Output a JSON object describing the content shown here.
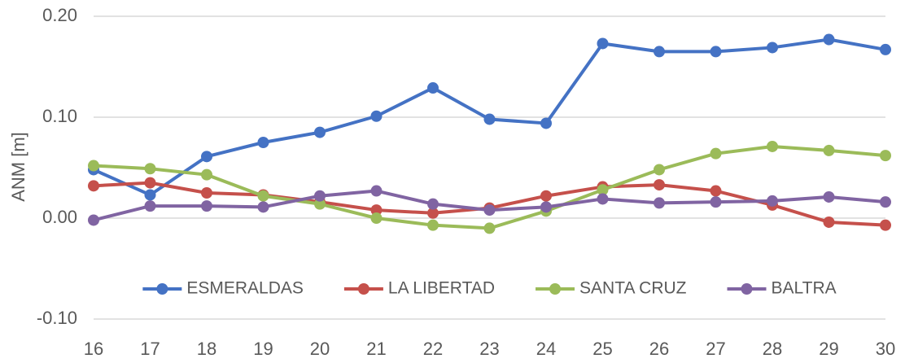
{
  "chart_data": {
    "type": "line",
    "y_label": "ANM  [m]",
    "x": [
      16,
      17,
      18,
      19,
      20,
      21,
      22,
      23,
      24,
      25,
      26,
      27,
      28,
      29,
      30
    ],
    "xlim": [
      16,
      30
    ],
    "xticks": [
      16,
      17,
      18,
      19,
      20,
      21,
      22,
      23,
      24,
      25,
      26,
      27,
      28,
      29,
      30
    ],
    "ylim": [
      -0.1,
      0.2
    ],
    "yticks": [
      {
        "value": -0.1,
        "label": "-0.10"
      },
      {
        "value": 0,
        "label": "0.00"
      },
      {
        "value": 0.1,
        "label": "0.10"
      },
      {
        "value": 0.2,
        "label": "0.20"
      }
    ],
    "grid": true,
    "legend": "bottom",
    "series": [
      {
        "name": "ESMERALDAS",
        "color": "#4472c4",
        "values": [
          0.048,
          0.023,
          0.061,
          0.075,
          0.085,
          0.101,
          0.129,
          0.098,
          0.094,
          0.173,
          0.165,
          0.165,
          0.169,
          0.177,
          0.167
        ]
      },
      {
        "name": "LA LIBERTAD",
        "color": "#c5504b",
        "values": [
          0.032,
          0.035,
          0.025,
          0.023,
          0.016,
          0.008,
          0.005,
          0.01,
          0.022,
          0.031,
          0.033,
          0.027,
          0.013,
          -0.004,
          -0.007
        ]
      },
      {
        "name": "SANTA CRUZ",
        "color": "#9bbb59",
        "values": [
          0.052,
          0.049,
          0.043,
          0.022,
          0.014,
          0.0,
          -0.007,
          -0.01,
          0.007,
          0.028,
          0.048,
          0.064,
          0.071,
          0.067,
          0.062
        ]
      },
      {
        "name": "BALTRA",
        "color": "#8064a2",
        "values": [
          -0.002,
          0.012,
          0.012,
          0.011,
          0.022,
          0.027,
          0.014,
          0.008,
          0.011,
          0.019,
          0.015,
          0.016,
          0.017,
          0.021,
          0.016
        ]
      }
    ]
  }
}
